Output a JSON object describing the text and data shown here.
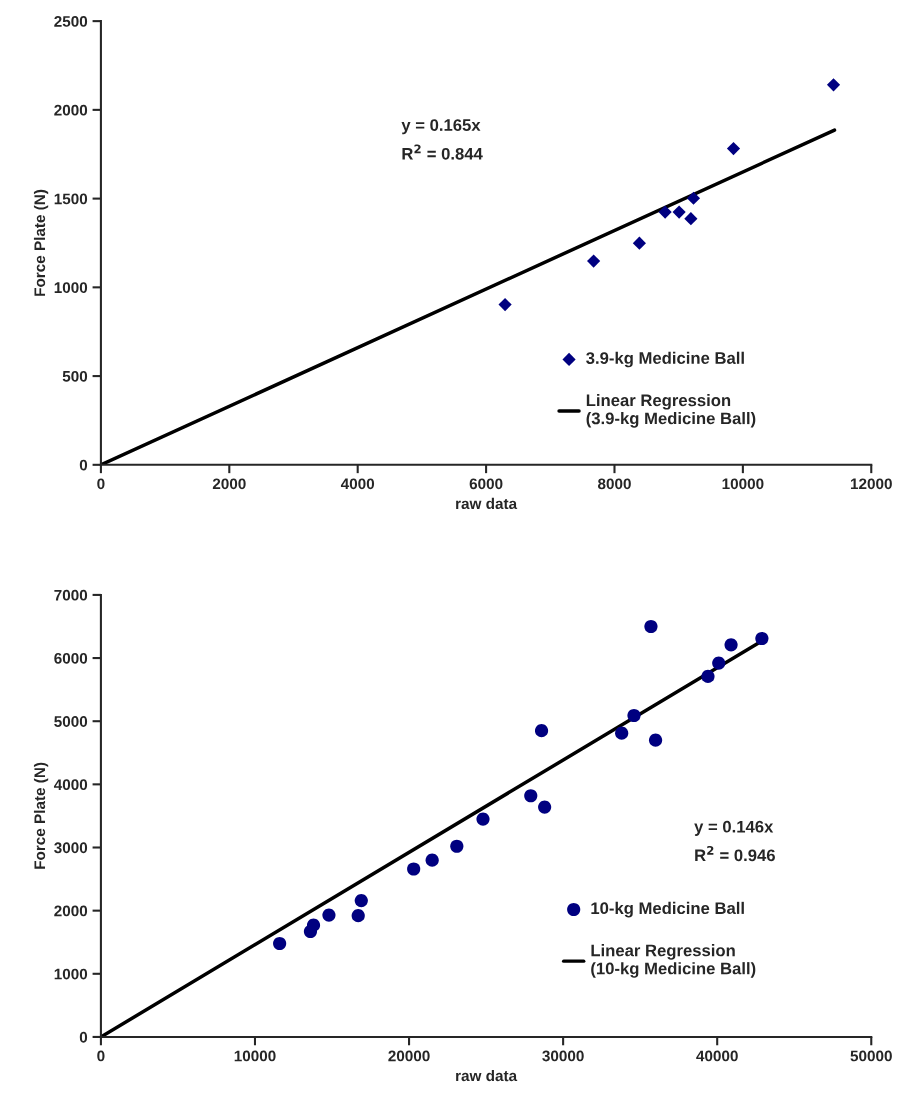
{
  "chart_data": [
    {
      "type": "scatter",
      "xlabel": "raw data",
      "ylabel": "Force Plate (N)",
      "series": [
        {
          "name": "3.9-kg Medicine Ball",
          "marker": "diamond",
          "color": "#000080",
          "x": [
            6296,
            7675,
            8388,
            8789,
            9007,
            9190,
            9231,
            9854,
            11412
          ],
          "values": [
            903,
            1148,
            1249,
            1424,
            1424,
            1387,
            1502,
            1782,
            2141
          ]
        },
        {
          "name": "Linear Regression\n(3.9-kg Medicine Ball)",
          "type": "line",
          "marker": "none",
          "color": "#000000",
          "x": [
            0,
            11428
          ],
          "values": [
            0,
            1886
          ]
        }
      ],
      "annotations": [
        "y = 0.165x",
        "R$^{2}$ = 0.844"
      ],
      "xlim": [
        0,
        12000
      ],
      "xticks": [
        0,
        2000,
        4000,
        6000,
        8000,
        10000,
        12000
      ],
      "ylim": [
        0,
        2500
      ],
      "yticks": [
        0,
        500,
        1000,
        1500,
        2000,
        2500
      ],
      "grid": false,
      "legend": "bottom right"
    },
    {
      "type": "scatter",
      "xlabel": "raw data",
      "ylabel": "Force Plate (N)",
      "series": [
        {
          "name": "10-kg Medicine Ball",
          "marker": "circle",
          "color": "#000080",
          "x": [
            11600,
            13600,
            13800,
            14800,
            16700,
            16900,
            20300,
            21500,
            23100,
            24800,
            27900,
            28800,
            28600,
            33800,
            34600,
            36000,
            35700,
            39400,
            40100,
            40900,
            42900
          ],
          "values": [
            1480,
            1670,
            1770,
            1930,
            1920,
            2160,
            2660,
            2800,
            3020,
            3450,
            3820,
            3640,
            4850,
            4810,
            5090,
            4700,
            6500,
            5710,
            5920,
            6210,
            6310
          ]
        },
        {
          "name": "Linear Regression\n(10-kg Medicine Ball)",
          "type": "line",
          "marker": "none",
          "color": "#000000",
          "x": [
            0,
            42900
          ],
          "values": [
            0,
            6270
          ]
        }
      ],
      "annotations": [
        "y = 0.146x",
        "R$^{2}$ = 0.946"
      ],
      "xlim": [
        0,
        50000
      ],
      "xticks": [
        0,
        10000,
        20000,
        30000,
        40000,
        50000
      ],
      "ylim": [
        0,
        7000
      ],
      "yticks": [
        0,
        1000,
        2000,
        3000,
        4000,
        5000,
        6000,
        7000
      ],
      "grid": false,
      "legend": "bottom right"
    }
  ]
}
